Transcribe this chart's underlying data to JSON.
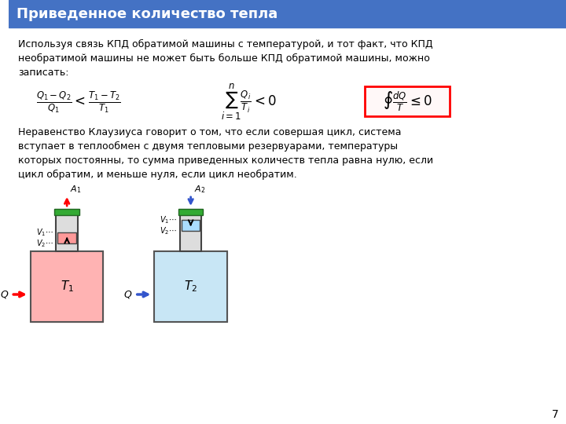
{
  "title": "Приведенное количество тепла",
  "title_bg": "#4472c4",
  "title_color": "#ffffff",
  "page_bg": "#ffffff",
  "page_num": "7",
  "para1": "Используя связь КПД обратимой машины с температурой, и тот факт, что КПД\nнеобратимой машины не может быть больше КПД обратимой машины, можно\nзаписать:",
  "formula1": "$\\frac{Q_1 - Q_2}{Q_1} < \\frac{T_1 - T_2}{T_1}$",
  "formula2": "$\\sum_{i=1}^{n} \\frac{Q_i}{T_i} < 0$",
  "formula3_box": "$\\oint \\frac{dQ}{T} \\leq 0$",
  "para2": "Неравенство Клаузиуса говорит о том, что если совершая цикл, система\nвступает в теплообмен с двумя тепловыми резервуарами, температуры\nкоторых постоянны, то сумма приведенных количеств тепла равна нулю, если\nцикл обратим, и меньше нуля, если цикл необратим.",
  "text_fontsize": 9,
  "formula_fontsize": 11
}
